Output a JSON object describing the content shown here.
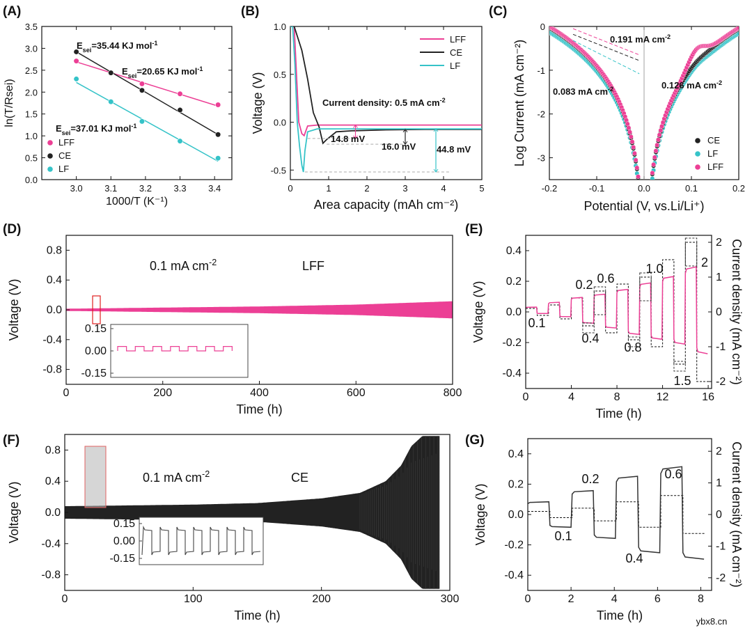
{
  "colors": {
    "LFF": "#ec3f95",
    "CE": "#222222",
    "LF": "#35c3c8",
    "gray": "#444444",
    "red": "#e02020"
  },
  "watermark": "ybx8.cn",
  "chart_data": [
    {
      "id": "A",
      "panel_label": "(A)",
      "type": "scatter",
      "xlabel": "1000/T (K⁻¹)",
      "ylabel": "ln(T/Rsei)",
      "xlim": [
        2.9,
        3.45
      ],
      "ylim": [
        0,
        3.5
      ],
      "xticks": [
        "3.0",
        "3.1",
        "3.2",
        "3.3",
        "3.4"
      ],
      "yticks": [
        "0.0",
        "0.5",
        "1.0",
        "1.5",
        "2.0",
        "2.5",
        "3.0",
        "3.5"
      ],
      "legend": [
        "LFF",
        "CE",
        "LF"
      ],
      "series": [
        {
          "name": "LFF",
          "x": [
            3.0,
            3.1,
            3.19,
            3.3,
            3.41
          ],
          "y": [
            2.71,
            2.44,
            2.19,
            1.96,
            1.71
          ],
          "fit": [
            [
              3.0,
              2.69
            ],
            [
              3.41,
              1.68
            ]
          ]
        },
        {
          "name": "CE",
          "x": [
            3.0,
            3.1,
            3.19,
            3.3,
            3.41
          ],
          "y": [
            2.92,
            2.44,
            2.04,
            1.59,
            1.03
          ],
          "fit": [
            [
              3.0,
              2.92
            ],
            [
              3.41,
              1.03
            ]
          ]
        },
        {
          "name": "LF",
          "x": [
            3.0,
            3.1,
            3.19,
            3.3,
            3.41
          ],
          "y": [
            2.3,
            1.78,
            1.33,
            0.88,
            0.49
          ],
          "fit": [
            [
              3.0,
              2.22
            ],
            [
              3.41,
              0.42
            ]
          ]
        }
      ],
      "annotations": [
        {
          "series": "CE",
          "main": "E",
          "sub": "sei",
          "text": "=35.44 KJ mol",
          "sup": "-1"
        },
        {
          "series": "LFF",
          "main": "E",
          "sub": "sei",
          "text": "=20.65 KJ mol",
          "sup": "-1"
        },
        {
          "series": "LF",
          "main": "E",
          "sub": "sei",
          "text": "=37.01 KJ mol",
          "sup": "-1"
        }
      ]
    },
    {
      "id": "B",
      "panel_label": "(B)",
      "type": "line",
      "xlabel": "Area capacity (mAh cm⁻²)",
      "ylabel": "Voltage (V)",
      "xlim": [
        0,
        5
      ],
      "ylim": [
        -0.6,
        1.0
      ],
      "xticks": [
        "0",
        "1",
        "2",
        "3",
        "4",
        "5"
      ],
      "yticks": [
        "-0.5",
        "0.0",
        "0.5",
        "1.0"
      ],
      "legend": [
        "LFF",
        "CE",
        "LF"
      ],
      "series": [
        {
          "name": "LFF",
          "x": [
            0,
            0.1,
            0.16,
            0.22,
            0.3,
            0.36,
            0.45,
            0.7,
            1.5,
            3,
            5
          ],
          "y": [
            1.0,
            1.0,
            0.5,
            0.0,
            -0.12,
            -0.14,
            -0.04,
            -0.03,
            -0.03,
            -0.03,
            -0.03
          ]
        },
        {
          "name": "CE",
          "x": [
            0,
            0.1,
            0.3,
            0.45,
            0.6,
            0.75,
            0.85,
            0.95,
            1.2,
            1.6,
            2.5,
            3.5,
            5
          ],
          "y": [
            1.0,
            1.0,
            0.75,
            0.45,
            0.1,
            -0.05,
            -0.22,
            -0.18,
            -0.1,
            -0.09,
            -0.08,
            -0.075,
            -0.075
          ]
        },
        {
          "name": "LF",
          "x": [
            0,
            0.06,
            0.12,
            0.18,
            0.24,
            0.3,
            0.34,
            0.38,
            0.45,
            0.7,
            1.5,
            3,
            5
          ],
          "y": [
            1.0,
            1.0,
            0.6,
            0.0,
            -0.25,
            -0.45,
            -0.52,
            -0.3,
            -0.1,
            -0.07,
            -0.07,
            -0.07,
            -0.07
          ]
        }
      ],
      "annotations": [
        {
          "text": "Current density: 0.5 mA cm",
          "sup": "-2"
        },
        {
          "text": "14.8 mV",
          "series": "LFF"
        },
        {
          "text": "16.0 mV",
          "series": "CE"
        },
        {
          "text": "44.8 mV",
          "series": "LF"
        }
      ]
    },
    {
      "id": "C",
      "panel_label": "(C)",
      "type": "scatter",
      "xlabel": "Potential (V, vs.Li/Li⁺)",
      "ylabel": "Log Current (mA cm⁻²)",
      "xlim": [
        -0.2,
        0.2
      ],
      "ylim": [
        -3.5,
        0
      ],
      "xticks": [
        "-0.2",
        "-0.1",
        "0.0",
        "0.1",
        "0.2"
      ],
      "yticks": [
        "0",
        "-1",
        "-2",
        "-3"
      ],
      "legend": [
        "CE",
        "LF",
        "LFF"
      ],
      "annotations": [
        {
          "text": "0.191 mA cm",
          "sup": "-2",
          "series": "LFF"
        },
        {
          "text": "0.083 mA cm",
          "sup": "-2",
          "series": "LF"
        },
        {
          "text": "0.126 mA cm",
          "sup": "-2",
          "series": "CE"
        }
      ]
    },
    {
      "id": "D",
      "panel_label": "(D)",
      "type": "area",
      "xlabel": "Time (h)",
      "ylabel": "Voltage (V)",
      "xlim": [
        0,
        800
      ],
      "ylim": [
        -1.0,
        1.0
      ],
      "xticks": [
        "0",
        "200",
        "400",
        "600",
        "800"
      ],
      "yticks": [
        "0.8",
        "0.4",
        "0.0",
        "-0.4",
        "-0.8"
      ],
      "series": [
        {
          "name": "LFF",
          "x": [
            0,
            200,
            400,
            600,
            800
          ],
          "y_envelope": [
            0.015,
            0.03,
            0.045,
            0.07,
            0.115
          ]
        }
      ],
      "current_label": "0.1 mA cm",
      "current_sup": "-2",
      "series_label": "LFF",
      "inset": {
        "yticks": [
          "0.15",
          "0.00",
          "-0.15"
        ],
        "amplitude": 0.03,
        "cycles": 7
      }
    },
    {
      "id": "E",
      "panel_label": "(E)",
      "type": "line",
      "xlabel": "Time (h)",
      "ylabel": "Voltage (V)",
      "y2label": "Current density (mA cm⁻²)",
      "xlim": [
        0,
        16.3
      ],
      "ylim": [
        -0.5,
        0.5
      ],
      "y2lim": [
        -2.2,
        2.2
      ],
      "xticks": [
        "0",
        "4",
        "8",
        "12",
        "16"
      ],
      "yticks": [
        "0.4",
        "0.2",
        "0.0",
        "-0.2",
        "-0.4"
      ],
      "y2ticks": [
        "2",
        "1",
        "0",
        "-1",
        "-2"
      ],
      "current_steps": [
        "0.1",
        "0.2",
        "0.4",
        "0.6",
        "0.8",
        "1.0",
        "1.5",
        "2"
      ],
      "voltage_plus": [
        0.03,
        0.06,
        0.09,
        0.11,
        0.14,
        0.18,
        0.22,
        0.28
      ],
      "voltage_minus": [
        -0.01,
        -0.03,
        -0.07,
        -0.1,
        -0.14,
        -0.17,
        -0.2,
        -0.26
      ]
    },
    {
      "id": "F",
      "panel_label": "(F)",
      "type": "area",
      "xlabel": "Time (h)",
      "ylabel": "Voltage (V)",
      "xlim": [
        0,
        300
      ],
      "ylim": [
        -1.0,
        1.0
      ],
      "xticks": [
        "0",
        "100",
        "200",
        "300"
      ],
      "yticks": [
        "0.8",
        "0.4",
        "0.0",
        "-0.4",
        "-0.8"
      ],
      "series": [
        {
          "name": "CE",
          "x": [
            0,
            50,
            100,
            150,
            200,
            230,
            250,
            262,
            270,
            280,
            292
          ],
          "y_envelope": [
            0.08,
            0.09,
            0.1,
            0.12,
            0.18,
            0.25,
            0.4,
            0.6,
            0.85,
            1.0,
            1.0
          ]
        }
      ],
      "current_label": "0.1 mA cm",
      "current_sup": "-2",
      "series_label": "CE",
      "inset": {
        "yticks": [
          "0.15",
          "0.00",
          "-0.15"
        ],
        "amplitude": 0.12,
        "cycles": 7
      }
    },
    {
      "id": "G",
      "panel_label": "(G)",
      "type": "line",
      "xlabel": "Time (h)",
      "ylabel": "Voltage (V)",
      "y2label": "Current density (mA cm⁻²)",
      "xlim": [
        0,
        8.5
      ],
      "ylim": [
        -0.5,
        0.5
      ],
      "y2lim": [
        -2.4,
        2.4
      ],
      "xticks": [
        "0",
        "2",
        "4",
        "6",
        "8"
      ],
      "yticks": [
        "0.4",
        "0.2",
        "0.0",
        "-0.2",
        "-0.4"
      ],
      "y2ticks": [
        "2",
        "1",
        "0",
        "-1",
        "-2"
      ],
      "current_steps": [
        "0.1",
        "0.2",
        "0.4",
        "0.6"
      ],
      "voltage_plus": [
        0.08,
        0.15,
        0.24,
        0.3
      ],
      "voltage_minus": [
        -0.08,
        -0.15,
        -0.24,
        -0.28
      ]
    }
  ]
}
